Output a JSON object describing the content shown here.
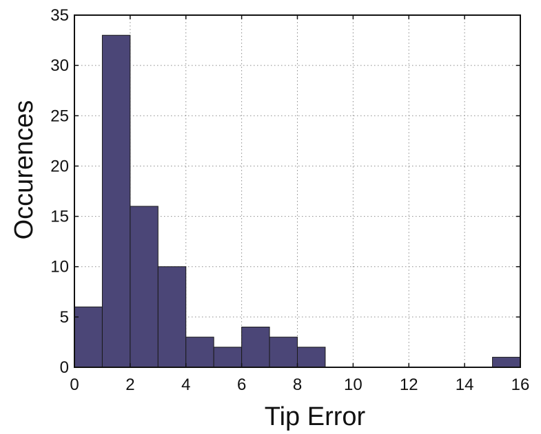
{
  "chart_data": {
    "type": "bar",
    "title": "",
    "xlabel": "Tip Error",
    "ylabel": "Occurences",
    "xlim": [
      0,
      16
    ],
    "ylim": [
      0,
      35
    ],
    "xticks": [
      0,
      2,
      4,
      6,
      8,
      10,
      12,
      14,
      16
    ],
    "yticks": [
      0,
      5,
      10,
      15,
      20,
      25,
      30,
      35
    ],
    "bin_width": 1,
    "bins": [
      {
        "x0": 0,
        "x1": 1,
        "value": 6
      },
      {
        "x0": 1,
        "x1": 2,
        "value": 33
      },
      {
        "x0": 2,
        "x1": 3,
        "value": 16
      },
      {
        "x0": 3,
        "x1": 4,
        "value": 10
      },
      {
        "x0": 4,
        "x1": 5,
        "value": 3
      },
      {
        "x0": 5,
        "x1": 6,
        "value": 2
      },
      {
        "x0": 6,
        "x1": 7,
        "value": 4
      },
      {
        "x0": 7,
        "x1": 8,
        "value": 3
      },
      {
        "x0": 8,
        "x1": 9,
        "value": 2
      },
      {
        "x0": 9,
        "x1": 10,
        "value": 0
      },
      {
        "x0": 10,
        "x1": 11,
        "value": 0
      },
      {
        "x0": 11,
        "x1": 12,
        "value": 0
      },
      {
        "x0": 12,
        "x1": 13,
        "value": 0
      },
      {
        "x0": 13,
        "x1": 14,
        "value": 0
      },
      {
        "x0": 14,
        "x1": 15,
        "value": 0
      },
      {
        "x0": 15,
        "x1": 16,
        "value": 1
      }
    ],
    "bar_color": "#4b4677",
    "bar_edge_color": "#1a1a1a",
    "grid": true,
    "legend": "none"
  }
}
